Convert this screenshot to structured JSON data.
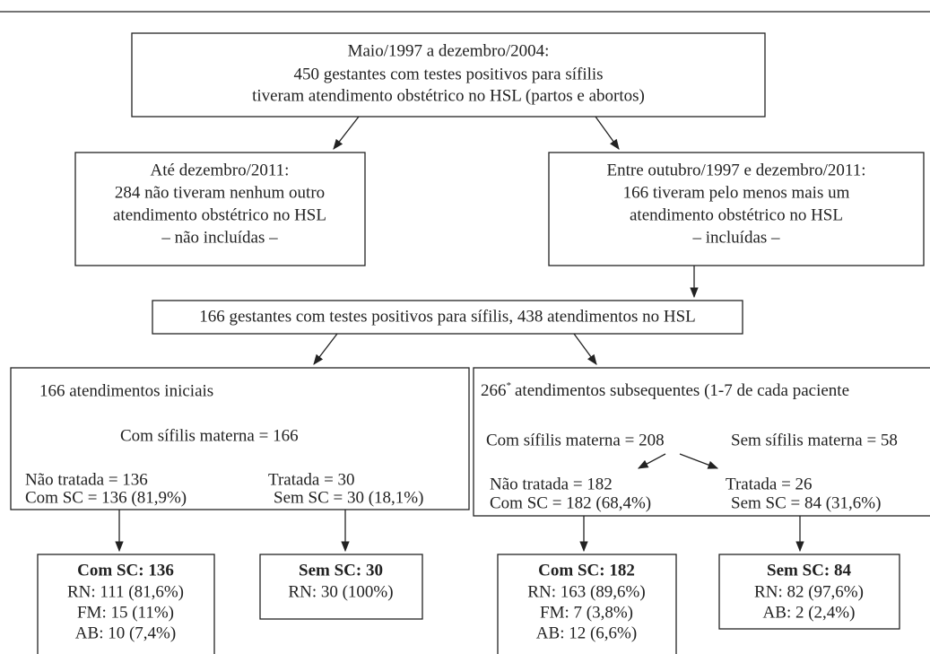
{
  "boxes": {
    "top": {
      "lines": [
        "Maio/1997 a dezembro/2004:",
        "450 gestantes com testes positivos para sífilis",
        "tiveram atendimento obstétrico no HSL (partos e abortos)"
      ]
    },
    "excluded": {
      "lines": [
        "Até dezembro/2011:",
        "284 não tiveram nenhum outro",
        "atendimento obstétrico no HSL",
        "– não incluídas –"
      ]
    },
    "included": {
      "lines": [
        "Entre outubro/1997 e dezembro/2011:",
        "166 tiveram pelo menos mais um",
        "atendimento obstétrico no HSL",
        "– incluídas –"
      ]
    },
    "total": {
      "text": "166 gestantes com testes positivos para sífilis, 438 atendimentos no HSL"
    },
    "initial": {
      "title": "166 atendimentos iniciais",
      "maternal": "Com sífilis materna = 166",
      "untreated": [
        "Não tratada = 136",
        "Com SC = 136 (81,9%)"
      ],
      "treated": [
        "Tratada = 30",
        "Sem SC = 30 (18,1%)"
      ]
    },
    "subsequent": {
      "title_number": "266",
      "title_mark": "*",
      "title_rest": "atendimentos subsequentes (1-7 de cada paciente",
      "with_maternal": "Com sífilis materna = 208",
      "without_maternal": "Sem sífilis materna = 58",
      "untreated": [
        "Não tratada = 182",
        "Com SC = 182 (68,4%)"
      ],
      "treated": [
        "Tratada = 26",
        "Sem SC = 84 (31,6%)"
      ]
    },
    "outcomes": [
      {
        "title": "Com SC: 136",
        "lines": [
          "RN: 111 (81,6%)",
          "FM: 15 (11%)",
          "AB: 10 (7,4%)"
        ]
      },
      {
        "title": "Sem SC: 30",
        "lines": [
          "RN: 30 (100%)"
        ]
      },
      {
        "title": "Com SC: 182",
        "lines": [
          "RN: 163 (89,6%)",
          "FM: 7 (3,8%)",
          "AB: 12 (6,6%)"
        ]
      },
      {
        "title": "Sem SC: 84",
        "lines": [
          "RN: 82 (97,6%)",
          "AB: 2 (2,4%)"
        ]
      }
    ]
  }
}
